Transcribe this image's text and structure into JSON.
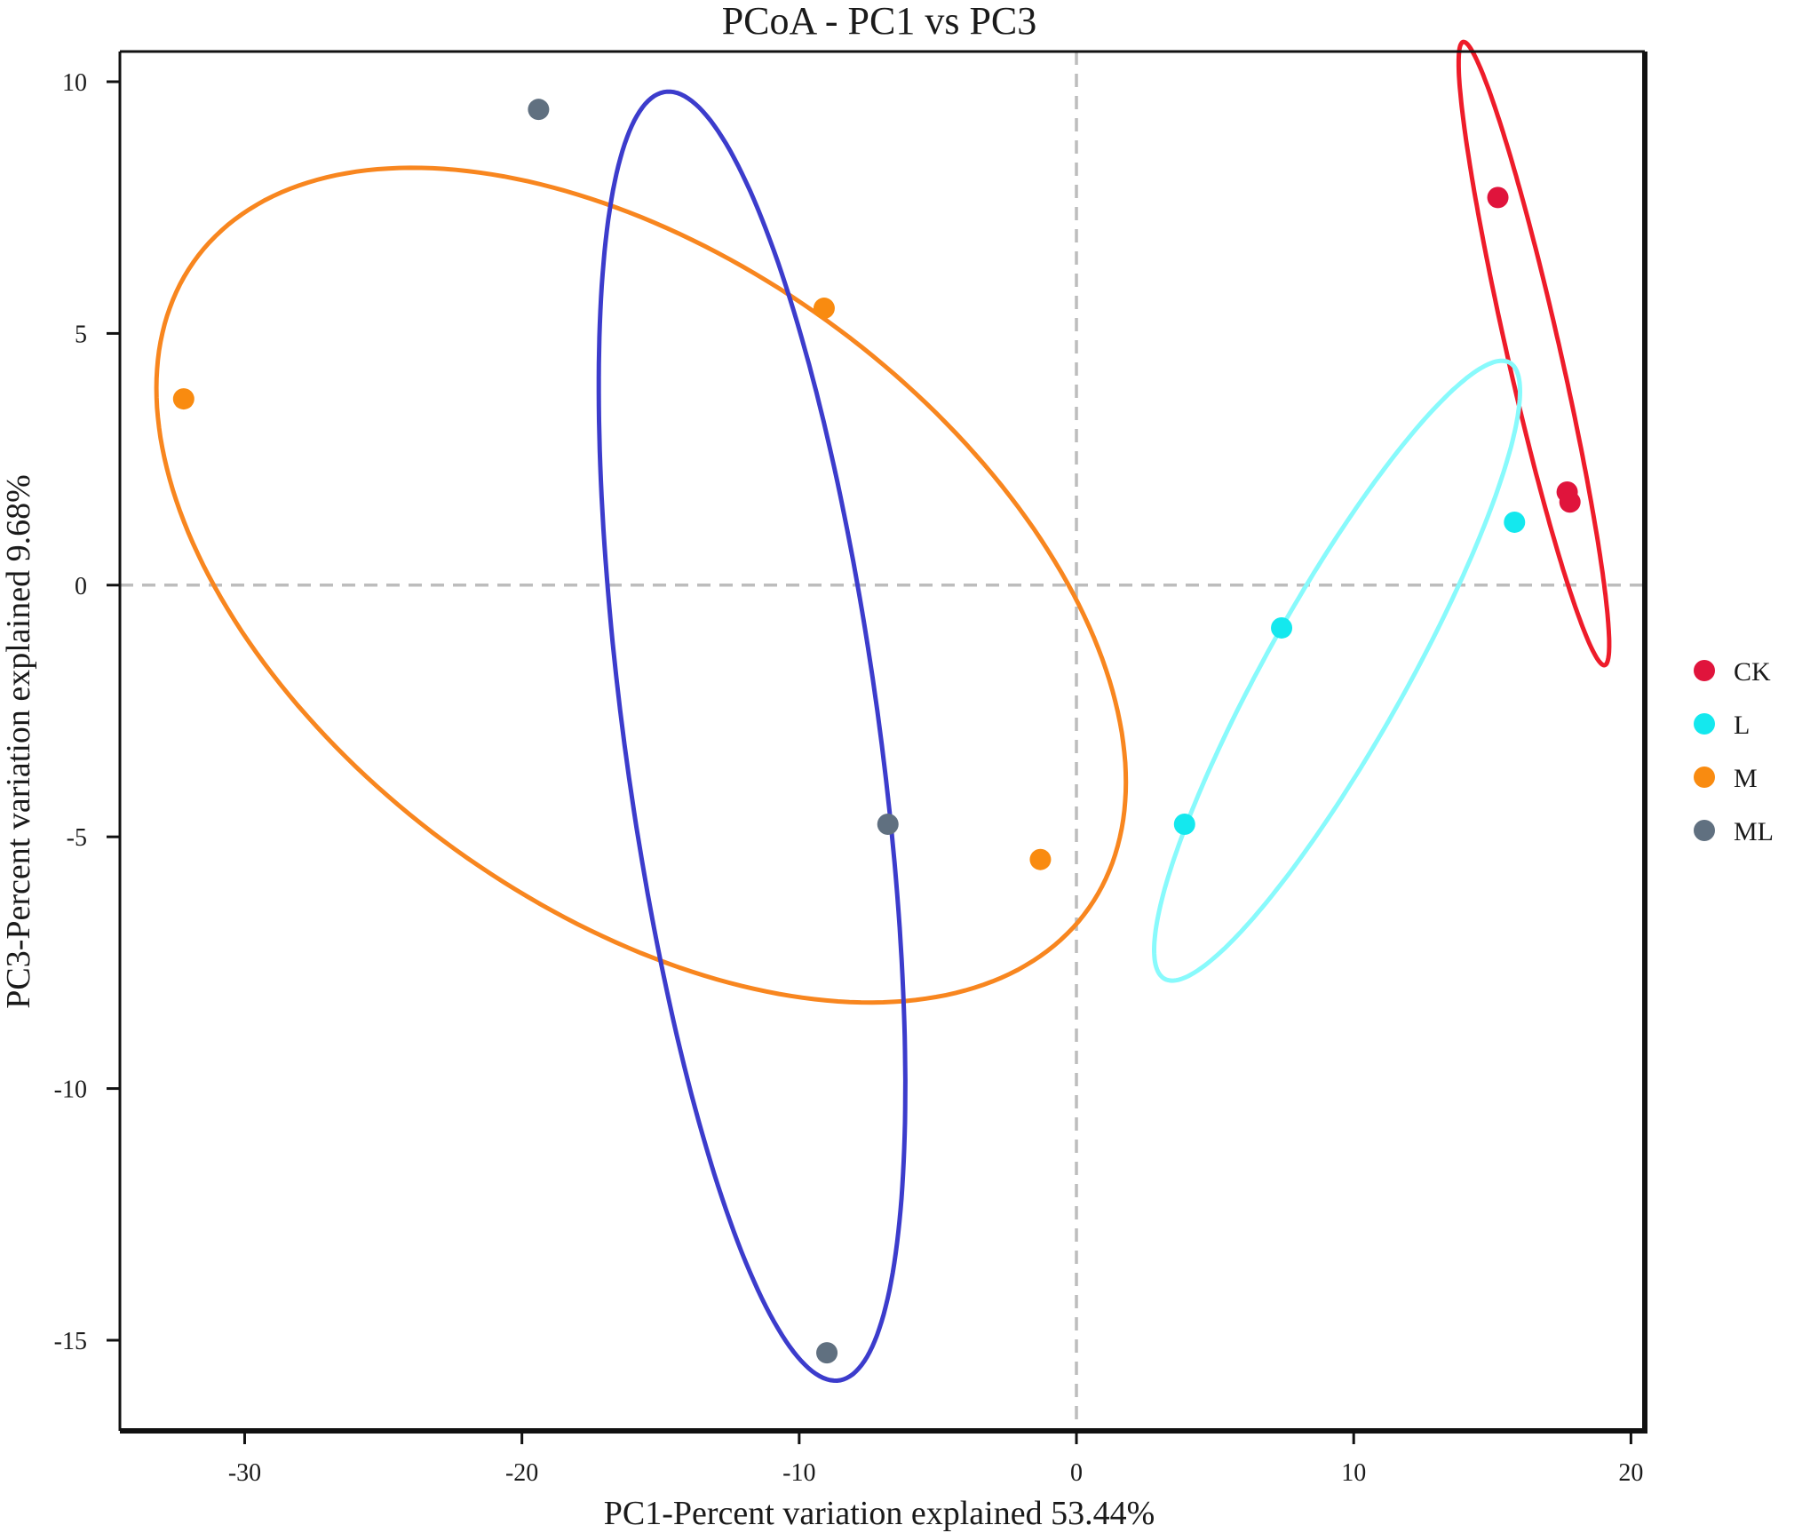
{
  "chart_data": {
    "type": "scatter",
    "title": "PCoA - PC1 vs PC3",
    "xlabel": "PC1-Percent variation explained 53.44%",
    "ylabel": "PC3-Percent variation explained 9.68%",
    "xlim": [
      -34.5,
      20.5
    ],
    "ylim": [
      -16.8,
      10.6
    ],
    "xticks": [
      -30,
      -20,
      -10,
      0,
      10,
      20
    ],
    "yticks": [
      10,
      5,
      0,
      -5,
      -10,
      -15
    ],
    "xtick_labels": [
      "-30",
      "-20",
      "-10",
      "0",
      "10",
      "20"
    ],
    "ytick_labels": [
      "10",
      "5",
      "0",
      "-5",
      "-10",
      "-15"
    ],
    "reference_lines": {
      "x": 0,
      "y": 0,
      "style": "dashed",
      "color": "#bdbdbd"
    },
    "legend_position": "right",
    "series": [
      {
        "name": "CK",
        "color": "#e0143c",
        "ellipse_color": "#ee1c2a",
        "points": [
          [
            15.2,
            7.7
          ],
          [
            17.7,
            1.85
          ],
          [
            17.8,
            1.65
          ]
        ],
        "ellipse": {
          "center": [
            16.5,
            4.6
          ],
          "rx": 6.7,
          "ry": 0.9,
          "rotation_deg": -67.3
        }
      },
      {
        "name": "L",
        "color": "#14e8ee",
        "ellipse_color": "#88fafc",
        "points": [
          [
            15.8,
            1.25
          ],
          [
            7.4,
            -0.85
          ],
          [
            3.9,
            -4.75
          ]
        ],
        "ellipse": {
          "center": [
            9.4,
            -1.7
          ],
          "rx": 8.8,
          "ry": 2.0,
          "rotation_deg": 42.8
        }
      },
      {
        "name": "M",
        "color": "#f98b10",
        "ellipse_color": "#f8861f",
        "points": [
          [
            -32.2,
            3.7
          ],
          [
            -9.1,
            5.5
          ],
          [
            -1.3,
            -5.45
          ]
        ],
        "ellipse": {
          "center": [
            -15.7,
            0.0
          ],
          "rx": 18.0,
          "ry": 7.1,
          "rotation_deg": -15.0
        }
      },
      {
        "name": "ML",
        "color": "#607080",
        "ellipse_color": "#3c3ccc",
        "points": [
          [
            -19.4,
            9.45
          ],
          [
            -6.8,
            -4.75
          ],
          [
            -9.0,
            -15.25
          ]
        ],
        "ellipse": {
          "center": [
            -11.7,
            -3.0
          ],
          "rx": 13.2,
          "ry": 4.5,
          "rotation_deg": -75.0
        }
      }
    ]
  }
}
